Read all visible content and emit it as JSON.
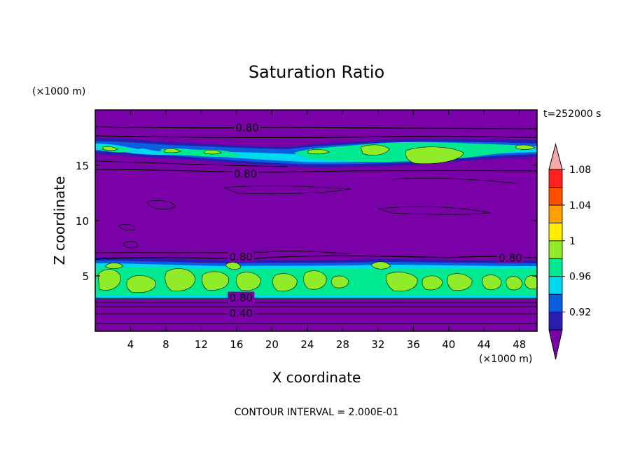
{
  "chart_data": {
    "type": "heatmap",
    "title": "Saturation Ratio",
    "time_label": "t=252000 s",
    "xlabel": "X coordinate",
    "ylabel": "Z coordinate",
    "x_unit": "(×1000 m)",
    "y_unit": "(×1000 m)",
    "footer": "CONTOUR INTERVAL = 2.000E-01",
    "xlim": [
      0,
      50
    ],
    "ylim": [
      0,
      20
    ],
    "x_ticks": [
      4,
      8,
      12,
      16,
      20,
      24,
      28,
      32,
      36,
      40,
      44,
      48
    ],
    "y_ticks": [
      5,
      10,
      15
    ],
    "colorbar": {
      "levels": [
        0.92,
        0.96,
        1,
        1.04,
        1.08
      ],
      "tick_labels": [
        "0.92",
        "0.96",
        "1",
        "1.04",
        "1.08"
      ],
      "colors": [
        "#7a00a8",
        "#2a1cb0",
        "#0a5ee0",
        "#00d8f0",
        "#00e890",
        "#90ec28",
        "#ffee00",
        "#ffa000",
        "#ff5000",
        "#ff2020",
        "#f4a8a8"
      ]
    },
    "bands": [
      {
        "z_min": 5.2,
        "z_max": 6.4,
        "value": "> 0.96"
      },
      {
        "z_min": 3.1,
        "z_max": 5.2,
        "value": "0.96 – 1.00"
      },
      {
        "z_min": 15.0,
        "z_max": 17.6,
        "value": "0.96 – 1.00"
      }
    ],
    "contour_labels": [
      {
        "text": "0.80",
        "x": 17.2,
        "z": 18.4
      },
      {
        "text": "0.80",
        "x": 17.0,
        "z": 14.2
      },
      {
        "text": "0.80",
        "x": 16.5,
        "z": 6.7
      },
      {
        "text": "0.80",
        "x": 47.0,
        "z": 6.6
      },
      {
        "text": "0.80",
        "x": 16.5,
        "z": 3.0
      },
      {
        "text": "0.40",
        "x": 16.5,
        "z": 1.6
      }
    ],
    "grid": false,
    "legend": "colorbar-right"
  }
}
